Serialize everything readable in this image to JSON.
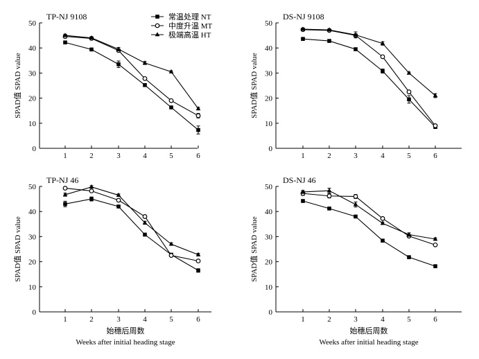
{
  "chart_data": [
    {
      "type": "line",
      "panel_label": "TP-NJ 9108",
      "ylabel": "SPAD值 SPAD value",
      "xlabel_cn": "",
      "xlabel_en": "",
      "x": [
        1,
        2,
        3,
        4,
        5,
        6
      ],
      "xticks": [
        "1",
        "2",
        "3",
        "4",
        "5",
        "6"
      ],
      "ylim": [
        0,
        50
      ],
      "yticks": [
        "0",
        "10",
        "20",
        "30",
        "40",
        "50"
      ],
      "series": [
        {
          "name": "常温处理 NT",
          "marker": "filled-square",
          "values": [
            42.2,
            39.4,
            33.5,
            25.2,
            16.3,
            7.3
          ],
          "errors": [
            0.6,
            0.5,
            1.3,
            0.5,
            0.5,
            1.6
          ]
        },
        {
          "name": "中度升温 MT",
          "marker": "open-circle",
          "values": [
            44.6,
            43.8,
            39.0,
            27.8,
            19.0,
            13.0
          ],
          "errors": [
            0.7,
            0.5,
            0.6,
            0.5,
            0.5,
            0.9
          ]
        },
        {
          "name": "极端高温 HT",
          "marker": "filled-triangle",
          "values": [
            45.0,
            44.0,
            39.5,
            34.0,
            30.5,
            15.8
          ],
          "errors": [
            0.5,
            0.5,
            0.7,
            0.6,
            0.4,
            0.5
          ]
        }
      ]
    },
    {
      "type": "line",
      "panel_label": "DS-NJ 9108",
      "ylabel": "SPAD值 SPAD value",
      "xlabel_cn": "",
      "xlabel_en": "",
      "x": [
        1,
        2,
        3,
        4,
        5,
        6
      ],
      "xticks": [
        "1",
        "2",
        "3",
        "4",
        "5",
        "6"
      ],
      "ylim": [
        0,
        50
      ],
      "yticks": [
        "0",
        "10",
        "20",
        "30",
        "40",
        "50"
      ],
      "series": [
        {
          "name": "常温处理 NT",
          "marker": "filled-square",
          "values": [
            43.6,
            42.8,
            39.5,
            30.8,
            19.5,
            8.5
          ],
          "errors": [
            0.4,
            0.4,
            0.5,
            0.8,
            1.5,
            0.5
          ]
        },
        {
          "name": "中度升温 MT",
          "marker": "open-circle",
          "values": [
            47.3,
            47.0,
            45.0,
            36.5,
            22.5,
            9.0
          ],
          "errors": [
            0.4,
            0.4,
            0.6,
            0.5,
            0.5,
            0.5
          ]
        },
        {
          "name": "极端高温 HT",
          "marker": "filled-triangle",
          "values": [
            47.5,
            47.2,
            45.2,
            41.8,
            30.0,
            21.0
          ],
          "errors": [
            0.5,
            0.4,
            1.2,
            0.7,
            0.4,
            0.8
          ]
        }
      ]
    },
    {
      "type": "line",
      "panel_label": "TP-NJ 46",
      "ylabel": "SPAD值 SPAD value",
      "xlabel_cn": "始穗后周数",
      "xlabel_en": "Weeks after initial heading stage",
      "x": [
        1,
        2,
        3,
        4,
        5,
        6
      ],
      "xticks": [
        "1",
        "2",
        "3",
        "4",
        "5",
        "6"
      ],
      "ylim": [
        0,
        50
      ],
      "yticks": [
        "0",
        "10",
        "20",
        "30",
        "40",
        "50"
      ],
      "series": [
        {
          "name": "常温处理 NT",
          "marker": "filled-square",
          "values": [
            43.0,
            45.0,
            42.0,
            30.8,
            22.8,
            16.5
          ],
          "errors": [
            1.1,
            0.8,
            0.5,
            0.5,
            0.5,
            0.7
          ]
        },
        {
          "name": "中度升温 MT",
          "marker": "open-circle",
          "values": [
            49.3,
            48.2,
            44.5,
            38.0,
            22.5,
            20.3
          ],
          "errors": [
            0.5,
            0.5,
            0.6,
            0.5,
            0.5,
            0.5
          ]
        },
        {
          "name": "极端高温 HT",
          "marker": "filled-triangle",
          "values": [
            46.7,
            49.8,
            46.5,
            35.5,
            27.0,
            22.8
          ],
          "errors": [
            0.6,
            0.5,
            0.5,
            0.6,
            0.5,
            0.5
          ]
        }
      ]
    },
    {
      "type": "line",
      "panel_label": "DS-NJ 46",
      "ylabel": "SPAD值 SPAD value",
      "xlabel_cn": "始穗后周数",
      "xlabel_en": "Weeks after initial heading stage",
      "x": [
        1,
        2,
        3,
        4,
        5,
        6
      ],
      "xticks": [
        "1",
        "2",
        "3",
        "4",
        "5",
        "6"
      ],
      "ylim": [
        0,
        50
      ],
      "yticks": [
        "0",
        "10",
        "20",
        "30",
        "40",
        "50"
      ],
      "series": [
        {
          "name": "常温处理 NT",
          "marker": "filled-square",
          "values": [
            44.2,
            41.2,
            38.0,
            28.4,
            21.8,
            18.2
          ],
          "errors": [
            0.5,
            0.4,
            0.4,
            0.4,
            0.4,
            0.4
          ]
        },
        {
          "name": "中度升温 MT",
          "marker": "open-circle",
          "values": [
            47.2,
            46.2,
            46.0,
            37.2,
            30.2,
            26.7
          ],
          "errors": [
            0.8,
            0.8,
            0.8,
            0.5,
            0.5,
            0.5
          ]
        },
        {
          "name": "极端高温 HT",
          "marker": "filled-triangle",
          "values": [
            47.8,
            48.3,
            42.8,
            35.3,
            30.8,
            29.0
          ],
          "errors": [
            0.6,
            1.0,
            1.0,
            0.5,
            0.7,
            0.5
          ]
        }
      ]
    }
  ],
  "legend": {
    "items": [
      {
        "label": "常温处理 NT",
        "marker": "filled-square"
      },
      {
        "label": "中度升温 MT",
        "marker": "open-circle"
      },
      {
        "label": "极端高温 HT",
        "marker": "filled-triangle"
      }
    ],
    "placement": "top-right of first panel"
  },
  "colors": {
    "ink": "#000000",
    "background": "#ffffff"
  }
}
